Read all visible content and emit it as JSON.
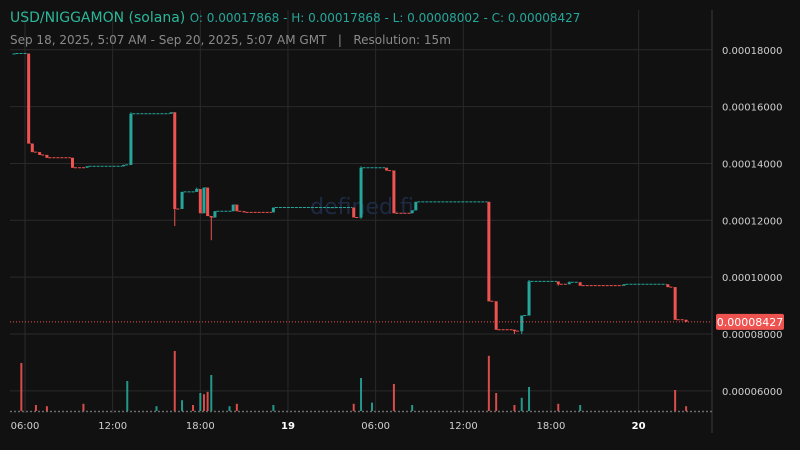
{
  "header": {
    "symbol": "USD/NIGGAMON (solana)",
    "ohlc": "O: 0.00017868 - H: 0.00017868 - L: 0.00008002 - C: 0.00008427",
    "range": "Sep 18, 2025, 5:07 AM - Sep 20, 2025, 5:07 AM GMT",
    "separator": "|",
    "resolution": "Resolution: 15m"
  },
  "watermark": "defined.fi",
  "colors": {
    "up": "#26a69a",
    "down": "#ef5350",
    "background": "#111111",
    "grid": "#2a2a2a"
  },
  "chart_data": {
    "type": "candlestick",
    "title": "USD/NIGGAMON (solana)",
    "resolution": "15m",
    "y_ticks": [
      "0.00018000",
      "0.00016000",
      "0.00014000",
      "0.00012000",
      "0.00010000",
      "0.00008000",
      "0.00006000"
    ],
    "ylim": [
      5.22e-05,
      0.000194
    ],
    "x_ticks": [
      {
        "label": "06:00",
        "hours": 0,
        "bold": false
      },
      {
        "label": "12:00",
        "hours": 6,
        "bold": false
      },
      {
        "label": "18:00",
        "hours": 12,
        "bold": false
      },
      {
        "label": "19",
        "hours": 18,
        "bold": true
      },
      {
        "label": "06:00",
        "hours": 24,
        "bold": false
      },
      {
        "label": "12:00",
        "hours": 30,
        "bold": false
      },
      {
        "label": "18:00",
        "hours": 36,
        "bold": false
      },
      {
        "label": "20",
        "hours": 42,
        "bold": true
      }
    ],
    "start": "Sep 18, 2025 05:07 GMT",
    "candles": [
      {
        "t": -0.75,
        "o": 0.0001787,
        "h": 0.0001787,
        "l": 0.0001787,
        "c": 0.0001787
      },
      {
        "t": 0.25,
        "o": 0.0001787,
        "h": 0.0001787,
        "l": 0.000147,
        "c": 0.000147
      },
      {
        "t": 0.5,
        "o": 0.000147,
        "h": 0.000147,
        "l": 0.000144,
        "c": 0.000144
      },
      {
        "t": 1.0,
        "o": 0.000144,
        "h": 0.000144,
        "l": 0.000143,
        "c": 0.000143
      },
      {
        "t": 1.5,
        "o": 0.000143,
        "h": 0.000143,
        "l": 0.000142,
        "c": 0.000142
      },
      {
        "t": 3.25,
        "o": 0.000142,
        "h": 0.000142,
        "l": 0.0001385,
        "c": 0.0001385
      },
      {
        "t": 4.25,
        "o": 0.0001385,
        "h": 0.000139,
        "l": 0.0001385,
        "c": 0.000139
      },
      {
        "t": 6.75,
        "o": 0.000139,
        "h": 0.0001395,
        "l": 0.000139,
        "c": 0.0001395
      },
      {
        "t": 7.25,
        "o": 0.0001395,
        "h": 0.000158,
        "l": 0.0001395,
        "c": 0.0001575
      },
      {
        "t": 10.0,
        "o": 0.0001575,
        "h": 0.000158,
        "l": 0.0001575,
        "c": 0.000158
      },
      {
        "t": 10.25,
        "o": 0.000158,
        "h": 0.000158,
        "l": 0.000118,
        "c": 0.000124
      },
      {
        "t": 10.75,
        "o": 0.000124,
        "h": 0.00013,
        "l": 0.000124,
        "c": 0.00013
      },
      {
        "t": 11.75,
        "o": 0.00013,
        "h": 0.0001315,
        "l": 0.00013,
        "c": 0.000131
      },
      {
        "t": 12.0,
        "o": 0.000131,
        "h": 0.000131,
        "l": 0.0001225,
        "c": 0.0001225
      },
      {
        "t": 12.25,
        "o": 0.0001225,
        "h": 0.0001315,
        "l": 0.0001225,
        "c": 0.0001315
      },
      {
        "t": 12.5,
        "o": 0.0001315,
        "h": 0.0001315,
        "l": 0.0001215,
        "c": 0.0001215
      },
      {
        "t": 12.75,
        "o": 0.0001215,
        "h": 0.0001215,
        "l": 0.000113,
        "c": 0.000121
      },
      {
        "t": 13.0,
        "o": 0.000121,
        "h": 0.0001232,
        "l": 0.000121,
        "c": 0.0001232
      },
      {
        "t": 14.25,
        "o": 0.0001232,
        "h": 0.0001255,
        "l": 0.0001232,
        "c": 0.0001255
      },
      {
        "t": 14.5,
        "o": 0.0001255,
        "h": 0.0001255,
        "l": 0.0001232,
        "c": 0.0001232
      },
      {
        "t": 15.0,
        "o": 0.0001232,
        "h": 0.0001232,
        "l": 0.0001228,
        "c": 0.0001228
      },
      {
        "t": 17.0,
        "o": 0.0001228,
        "h": 0.0001245,
        "l": 0.0001228,
        "c": 0.0001245
      },
      {
        "t": 22.5,
        "o": 0.0001245,
        "h": 0.0001245,
        "l": 0.000121,
        "c": 0.000121
      },
      {
        "t": 23.0,
        "o": 0.000121,
        "h": 0.000139,
        "l": 0.0001205,
        "c": 0.0001385
      },
      {
        "t": 24.75,
        "o": 0.0001385,
        "h": 0.0001385,
        "l": 0.0001375,
        "c": 0.0001375
      },
      {
        "t": 25.25,
        "o": 0.0001375,
        "h": 0.0001375,
        "l": 0.0001225,
        "c": 0.0001225
      },
      {
        "t": 26.5,
        "o": 0.0001225,
        "h": 0.0001235,
        "l": 0.0001225,
        "c": 0.0001235
      },
      {
        "t": 26.75,
        "o": 0.0001235,
        "h": 0.0001265,
        "l": 0.0001235,
        "c": 0.0001265
      },
      {
        "t": 31.75,
        "o": 0.0001265,
        "h": 0.0001265,
        "l": 9.15e-05,
        "c": 9.15e-05
      },
      {
        "t": 32.25,
        "o": 9.15e-05,
        "h": 9.15e-05,
        "l": 8.15e-05,
        "c": 8.15e-05
      },
      {
        "t": 33.5,
        "o": 8.15e-05,
        "h": 8.15e-05,
        "l": 8e-05,
        "c": 8.1e-05
      },
      {
        "t": 34.0,
        "o": 8.1e-05,
        "h": 8.65e-05,
        "l": 8e-05,
        "c": 8.65e-05
      },
      {
        "t": 34.5,
        "o": 8.65e-05,
        "h": 9.9e-05,
        "l": 8.65e-05,
        "c": 9.85e-05
      },
      {
        "t": 36.5,
        "o": 9.85e-05,
        "h": 9.85e-05,
        "l": 9.7e-05,
        "c": 9.75e-05
      },
      {
        "t": 37.25,
        "o": 9.75e-05,
        "h": 9.85e-05,
        "l": 9.75e-05,
        "c": 9.82e-05
      },
      {
        "t": 38.0,
        "o": 9.82e-05,
        "h": 9.82e-05,
        "l": 9.7e-05,
        "c": 9.7e-05
      },
      {
        "t": 41.0,
        "o": 9.7e-05,
        "h": 9.75e-05,
        "l": 9.7e-05,
        "c": 9.75e-05
      },
      {
        "t": 44.0,
        "o": 9.75e-05,
        "h": 9.75e-05,
        "l": 9.65e-05,
        "c": 9.65e-05
      },
      {
        "t": 44.5,
        "o": 9.65e-05,
        "h": 9.65e-05,
        "l": 8.5e-05,
        "c": 8.5e-05
      },
      {
        "t": 45.25,
        "o": 8.5e-05,
        "h": 8.5e-05,
        "l": 8.43e-05,
        "c": 8.43e-05
      }
    ],
    "volume_scale": "relative",
    "volumes": [
      {
        "t": -0.25,
        "v": 0.8,
        "dir": "down"
      },
      {
        "t": 0.75,
        "v": 0.1,
        "dir": "down"
      },
      {
        "t": 1.5,
        "v": 0.08,
        "dir": "down"
      },
      {
        "t": 4.0,
        "v": 0.12,
        "dir": "down"
      },
      {
        "t": 7.0,
        "v": 0.5,
        "dir": "up"
      },
      {
        "t": 9.0,
        "v": 0.08,
        "dir": "up"
      },
      {
        "t": 10.25,
        "v": 1.0,
        "dir": "down"
      },
      {
        "t": 10.75,
        "v": 0.18,
        "dir": "up"
      },
      {
        "t": 11.5,
        "v": 0.1,
        "dir": "down"
      },
      {
        "t": 12.0,
        "v": 0.3,
        "dir": "up"
      },
      {
        "t": 12.25,
        "v": 0.28,
        "dir": "down"
      },
      {
        "t": 12.5,
        "v": 0.32,
        "dir": "down"
      },
      {
        "t": 12.75,
        "v": 0.6,
        "dir": "up"
      },
      {
        "t": 14.0,
        "v": 0.08,
        "dir": "up"
      },
      {
        "t": 14.5,
        "v": 0.12,
        "dir": "down"
      },
      {
        "t": 17.0,
        "v": 0.1,
        "dir": "up"
      },
      {
        "t": 22.5,
        "v": 0.12,
        "dir": "down"
      },
      {
        "t": 23.0,
        "v": 0.55,
        "dir": "up"
      },
      {
        "t": 23.75,
        "v": 0.14,
        "dir": "up"
      },
      {
        "t": 25.25,
        "v": 0.45,
        "dir": "down"
      },
      {
        "t": 26.5,
        "v": 0.1,
        "dir": "up"
      },
      {
        "t": 31.75,
        "v": 0.92,
        "dir": "down"
      },
      {
        "t": 32.25,
        "v": 0.3,
        "dir": "down"
      },
      {
        "t": 33.5,
        "v": 0.1,
        "dir": "down"
      },
      {
        "t": 34.0,
        "v": 0.22,
        "dir": "up"
      },
      {
        "t": 34.5,
        "v": 0.4,
        "dir": "up"
      },
      {
        "t": 36.5,
        "v": 0.12,
        "dir": "down"
      },
      {
        "t": 38.0,
        "v": 0.1,
        "dir": "up"
      },
      {
        "t": 44.5,
        "v": 0.35,
        "dir": "down"
      },
      {
        "t": 45.25,
        "v": 0.08,
        "dir": "down"
      }
    ],
    "last_price": 8.427e-05,
    "last_price_label": "0.00008427"
  }
}
